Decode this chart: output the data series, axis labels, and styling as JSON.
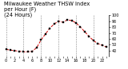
{
  "title": "Milwaukee Weather THSW Index",
  "subtitle1": "per Hour (F)",
  "subtitle2": "(24 Hours)",
  "hours": [
    0,
    1,
    2,
    3,
    4,
    5,
    6,
    7,
    8,
    9,
    10,
    11,
    12,
    13,
    14,
    15,
    16,
    17,
    18,
    19,
    20,
    21,
    22,
    23
  ],
  "values": [
    42,
    41,
    40,
    39,
    38,
    38,
    39,
    45,
    58,
    68,
    78,
    85,
    90,
    88,
    92,
    91,
    87,
    80,
    72,
    64,
    57,
    52,
    49,
    46
  ],
  "line_color": "#cc0000",
  "marker_color": "#000000",
  "bg_color": "#ffffff",
  "grid_color": "#888888",
  "ylim": [
    30,
    100
  ],
  "ytick_values": [
    40,
    50,
    60,
    70,
    80,
    90,
    100
  ],
  "ytick_labels": [
    "40",
    "50",
    "60",
    "70",
    "80",
    "90",
    "100"
  ],
  "title_fontsize": 4.8,
  "tick_fontsize": 3.5,
  "line_style": "--",
  "line_width": 0.7,
  "marker_size": 1.8,
  "grid_hours": [
    0,
    4,
    8,
    12,
    16,
    20
  ]
}
